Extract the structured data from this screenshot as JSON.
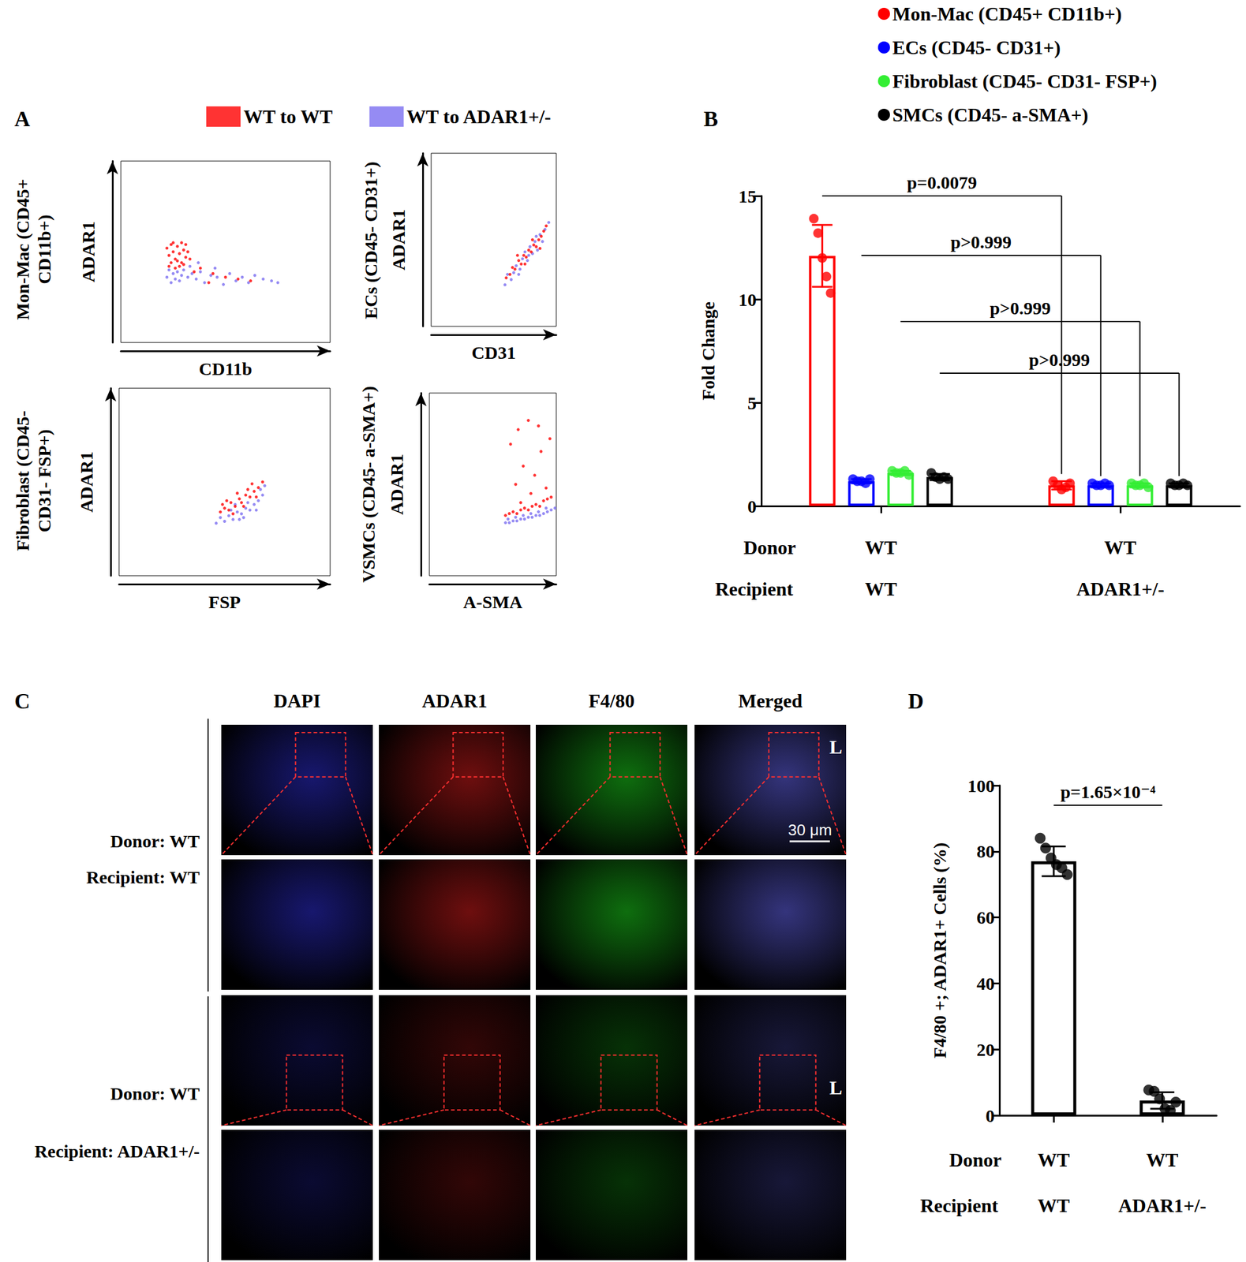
{
  "panel_labels": [
    "A",
    "B",
    "C",
    "D"
  ],
  "chart_data": [
    {
      "type": "scatter",
      "x_label": "CD11b",
      "y_label": "ADAR1",
      "population": [
        "Mon-Mac (CD45+",
        "CD11b+)"
      ],
      "xlim": [
        0,
        100
      ],
      "ylim": [
        0,
        100
      ],
      "tick_labels": false,
      "legend": "top",
      "series": [
        {
          "name": "WT to ADAR1+/-",
          "color": "#7b6ef0",
          "values": [
            [
              22,
              36
            ],
            [
              23,
              40
            ],
            [
              24,
              33
            ],
            [
              25,
              38
            ],
            [
              26,
              35
            ],
            [
              27,
              39
            ],
            [
              28,
              34
            ],
            [
              29,
              37
            ],
            [
              30,
              40
            ],
            [
              32,
              36
            ],
            [
              34,
              38
            ],
            [
              36,
              35
            ],
            [
              38,
              39
            ],
            [
              40,
              33
            ],
            [
              43,
              37
            ],
            [
              46,
              36
            ],
            [
              49,
              32
            ],
            [
              52,
              38
            ],
            [
              55,
              34
            ],
            [
              58,
              36
            ],
            [
              61,
              33
            ],
            [
              64,
              37
            ],
            [
              68,
              35
            ],
            [
              72,
              34
            ],
            [
              75,
              33
            ],
            [
              33,
              42
            ],
            [
              37,
              44
            ],
            [
              45,
              41
            ]
          ]
        },
        {
          "name": "WT to WT",
          "color": "#ff0000",
          "values": [
            [
              22,
              52
            ],
            [
              23,
              48
            ],
            [
              24,
              54
            ],
            [
              25,
              50
            ],
            [
              26,
              46
            ],
            [
              27,
              53
            ],
            [
              28,
              49
            ],
            [
              29,
              44
            ],
            [
              30,
              51
            ],
            [
              31,
              47
            ],
            [
              24,
              44
            ],
            [
              26,
              41
            ],
            [
              28,
              42
            ],
            [
              30,
              43
            ],
            [
              32,
              50
            ],
            [
              23,
              42
            ],
            [
              25,
              55
            ],
            [
              29,
              55
            ],
            [
              31,
              54
            ],
            [
              27,
              45
            ],
            [
              33,
              46
            ],
            [
              38,
              41
            ],
            [
              44,
              38
            ],
            [
              50,
              36
            ],
            [
              56,
              35
            ],
            [
              42,
              33
            ],
            [
              62,
              34
            ],
            [
              35,
              39
            ]
          ]
        }
      ]
    },
    {
      "type": "scatter",
      "x_label": "CD31",
      "y_label": "ADAR1",
      "population": [
        "ECs (CD45- CD31+)"
      ],
      "xlim": [
        0,
        100
      ],
      "ylim": [
        0,
        100
      ],
      "tick_labels": false,
      "series": [
        {
          "name": "WT to ADAR1+/-",
          "color": "#7b6ef0",
          "values": [
            [
              59,
              24
            ],
            [
              61,
              30
            ],
            [
              64,
              27
            ],
            [
              66,
              31
            ],
            [
              68,
              35
            ],
            [
              71,
              33
            ],
            [
              73,
              39
            ],
            [
              75,
              43
            ],
            [
              77,
              38
            ],
            [
              79,
              46
            ],
            [
              81,
              42
            ],
            [
              83,
              49
            ],
            [
              85,
              44
            ],
            [
              87,
              53
            ],
            [
              89,
              49
            ],
            [
              91,
              56
            ],
            [
              94,
              60
            ],
            [
              70,
              30
            ],
            [
              78,
              41
            ],
            [
              84,
              52
            ]
          ]
        },
        {
          "name": "WT to WT",
          "color": "#ff0000",
          "values": [
            [
              60,
              28
            ],
            [
              63,
              30
            ],
            [
              65,
              34
            ],
            [
              67,
              33
            ],
            [
              70,
              38
            ],
            [
              72,
              36
            ],
            [
              74,
              41
            ],
            [
              76,
              40
            ],
            [
              78,
              44
            ],
            [
              80,
              43
            ],
            [
              82,
              47
            ],
            [
              84,
              46
            ],
            [
              86,
              50
            ],
            [
              88,
              52
            ],
            [
              90,
              55
            ],
            [
              92,
              58
            ],
            [
              69,
              41
            ],
            [
              75,
              36
            ],
            [
              81,
              50
            ],
            [
              87,
              45
            ]
          ]
        }
      ]
    },
    {
      "type": "scatter",
      "x_label": "FSP",
      "y_label": "ADAR1",
      "population": [
        "Fibroblast (CD45-",
        "CD31- FSP+)"
      ],
      "xlim": [
        0,
        100
      ],
      "ylim": [
        0,
        100
      ],
      "tick_labels": false,
      "series": [
        {
          "name": "WT to ADAR1+/-",
          "color": "#7b6ef0",
          "values": [
            [
              46,
              28
            ],
            [
              48,
              31
            ],
            [
              50,
              29
            ],
            [
              52,
              32
            ],
            [
              54,
              30
            ],
            [
              56,
              34
            ],
            [
              58,
              33
            ],
            [
              60,
              36
            ],
            [
              62,
              35
            ],
            [
              64,
              38
            ],
            [
              66,
              40
            ],
            [
              68,
              43
            ],
            [
              53,
              35
            ],
            [
              57,
              30
            ],
            [
              61,
              39
            ],
            [
              65,
              35
            ],
            [
              67,
              46
            ],
            [
              69,
              48
            ],
            [
              55,
              38
            ],
            [
              59,
              31
            ]
          ]
        },
        {
          "name": "WT to WT",
          "color": "#ff0000",
          "values": [
            [
              48,
              34
            ],
            [
              50,
              36
            ],
            [
              52,
              35
            ],
            [
              53,
              39
            ],
            [
              55,
              37
            ],
            [
              57,
              41
            ],
            [
              58,
              39
            ],
            [
              60,
              43
            ],
            [
              62,
              42
            ],
            [
              64,
              45
            ],
            [
              66,
              47
            ],
            [
              68,
              50
            ],
            [
              51,
              40
            ],
            [
              56,
              44
            ],
            [
              61,
              46
            ],
            [
              54,
              33
            ],
            [
              59,
              37
            ],
            [
              63,
              49
            ],
            [
              65,
              42
            ],
            [
              49,
              38
            ]
          ]
        }
      ]
    },
    {
      "type": "scatter",
      "x_label": "A-SMA",
      "y_label": "ADAR1",
      "population": [
        "VSMCs (CD45- a-SMA+)"
      ],
      "xlim": [
        0,
        100
      ],
      "ylim": [
        0,
        100
      ],
      "tick_labels": false,
      "series": [
        {
          "name": "WT to WT",
          "color": "#ff0000",
          "values": [
            [
              60,
              33
            ],
            [
              63,
              34
            ],
            [
              66,
              35
            ],
            [
              69,
              34
            ],
            [
              72,
              36
            ],
            [
              75,
              37
            ],
            [
              78,
              36
            ],
            [
              81,
              38
            ],
            [
              84,
              39
            ],
            [
              87,
              38
            ],
            [
              90,
              41
            ],
            [
              93,
              42
            ],
            [
              96,
              43
            ],
            [
              64,
              72
            ],
            [
              70,
              80
            ],
            [
              74,
              60
            ],
            [
              78,
              85
            ],
            [
              83,
              55
            ],
            [
              88,
              68
            ],
            [
              92,
              48
            ],
            [
              68,
              50
            ],
            [
              95,
              75
            ],
            [
              80,
              45
            ],
            [
              86,
              82
            ],
            [
              72,
              40
            ]
          ]
        },
        {
          "name": "WT to ADAR1+/-",
          "color": "#7b6ef0",
          "values": [
            [
              60,
              29
            ],
            [
              63,
              29
            ],
            [
              66,
              30
            ],
            [
              69,
              30
            ],
            [
              72,
              31
            ],
            [
              75,
              31
            ],
            [
              78,
              32
            ],
            [
              81,
              32
            ],
            [
              84,
              33
            ],
            [
              87,
              33
            ],
            [
              90,
              34
            ],
            [
              93,
              35
            ],
            [
              96,
              36
            ],
            [
              99,
              37
            ],
            [
              62,
              31
            ],
            [
              68,
              32
            ],
            [
              74,
              33
            ],
            [
              80,
              34
            ],
            [
              86,
              35
            ],
            [
              92,
              37
            ]
          ]
        }
      ]
    },
    {
      "type": "bar",
      "y_label": "Fold Change",
      "ylim": [
        0,
        15
      ],
      "yticks": [
        0,
        5,
        10,
        15
      ],
      "legend": "top-right",
      "categories": [
        null,
        null
      ],
      "row_labels": [
        "Donor",
        "Recipient"
      ],
      "rows": [
        [
          "WT",
          "WT"
        ],
        [
          "WT",
          "ADAR1+/-"
        ]
      ],
      "series": [
        {
          "name": "Mon-Mac (CD45+ CD11b+)",
          "color": "#ff0000",
          "values": [
            12.1,
            1.0
          ],
          "errors": [
            1.5,
            0.2
          ],
          "points": [
            [
              13.9,
              13.2,
              12.0,
              11.1,
              10.3
            ],
            [
              1.2,
              1.0,
              0.8,
              0.9,
              1.1
            ]
          ]
        },
        {
          "name": "ECs (CD45- CD31+)",
          "color": "#0000ff",
          "values": [
            1.2,
            1.0
          ],
          "errors": [
            0.1,
            0.1
          ],
          "points": [
            [
              1.3,
              1.2,
              1.2,
              1.1,
              1.3
            ],
            [
              1.1,
              1.0,
              1.0,
              1.1,
              1.0
            ]
          ]
        },
        {
          "name": "Fibroblast (CD45- CD31- FSP+)",
          "color": "#33ee33",
          "values": [
            1.6,
            1.0
          ],
          "errors": [
            0.1,
            0.1
          ],
          "points": [
            [
              1.7,
              1.6,
              1.6,
              1.7,
              1.5
            ],
            [
              1.1,
              1.0,
              1.0,
              1.1,
              0.9
            ]
          ]
        },
        {
          "name": "SMCs (CD45- a-SMA+)",
          "color": "#000000",
          "values": [
            1.4,
            1.0
          ],
          "errors": [
            0.15,
            0.1
          ],
          "points": [
            [
              1.6,
              1.4,
              1.3,
              1.4,
              1.3
            ],
            [
              1.1,
              1.0,
              1.0,
              1.1,
              1.0
            ]
          ]
        }
      ],
      "comparisons": [
        {
          "series": "Mon-Mac (CD45+ CD11b+)",
          "label": "p=0.0079"
        },
        {
          "series": "ECs (CD45- CD31+)",
          "label": "p>0.999"
        },
        {
          "series": "Fibroblast (CD45- CD31- FSP+)",
          "label": "p>0.999"
        },
        {
          "series": "SMCs (CD45- a-SMA+)",
          "label": "p>0.999"
        }
      ]
    },
    {
      "type": "bar",
      "y_label": "F4/80 +; ADAR1+ Cells (%)",
      "ylim": [
        0,
        100
      ],
      "yticks": [
        0,
        20,
        40,
        60,
        80,
        100
      ],
      "categories": [
        null,
        null
      ],
      "row_labels": [
        "Donor",
        "Recipient"
      ],
      "rows": [
        [
          "WT",
          "WT"
        ],
        [
          "WT",
          "ADAR1+/-"
        ]
      ],
      "color": "#000000",
      "values": [
        77,
        4.5
      ],
      "errors": [
        4.5,
        2.5
      ],
      "points": [
        [
          84,
          81,
          78,
          76,
          75,
          73
        ],
        [
          7.7,
          7.3,
          5.0,
          2.0,
          1.5,
          4.0
        ]
      ],
      "comparisons": [
        {
          "label": "p=1.65×10⁻⁴"
        }
      ]
    }
  ],
  "panel_c": {
    "columns": [
      "DAPI",
      "ADAR1",
      "F4/80",
      "Merged"
    ],
    "groups": [
      {
        "lines": [
          [
            "Donor:",
            "WT"
          ],
          [
            "Recipient:",
            "WT"
          ]
        ]
      },
      {
        "lines": [
          [
            "Donor:",
            "WT"
          ],
          [
            "Recipient:",
            "ADAR1+/-"
          ]
        ]
      }
    ],
    "scale_bar": "30 μm",
    "lumen_label": "L"
  }
}
